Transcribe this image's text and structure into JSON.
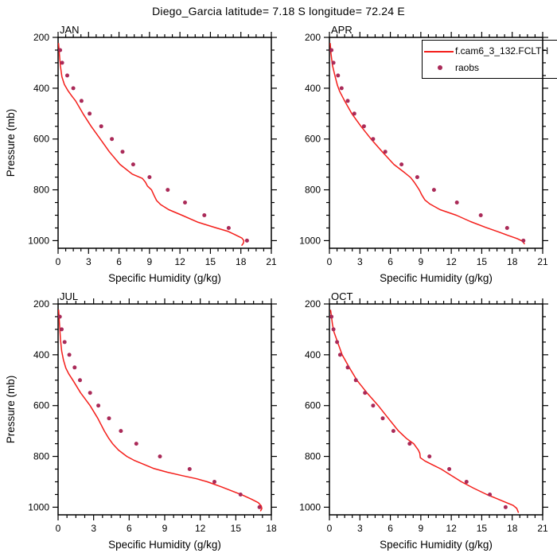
{
  "title": "Diego_Garcia  latitude= 7.18 S longitude= 72.24 E",
  "colors": {
    "model_line": "#f41e1a",
    "raobs_dot": "#aa2a58",
    "axis": "#000000"
  },
  "legend": {
    "model_label": "f.cam6_3_132.FCLTH",
    "raobs_label": "raobs"
  },
  "axes": {
    "ylabel": "Pressure (mb)",
    "xlabel": "Specific Humidity (g/kg)"
  },
  "chart_data": [
    {
      "type": "line",
      "title": "JAN",
      "xlabel": "Specific Humidity (g/kg)",
      "ylabel": "Pressure (mb)",
      "xlim": [
        0,
        21
      ],
      "ylim": [
        200,
        1030
      ],
      "y_inverted": true,
      "xticks": [
        0,
        3,
        6,
        9,
        12,
        15,
        18,
        21
      ],
      "yticks": [
        200,
        400,
        600,
        800,
        1000
      ],
      "x_minor_step": 0.75,
      "y_minor_step": 50,
      "series": [
        {
          "name": "f.cam6_3_132.FCLTH",
          "kind": "line",
          "points": [
            [
              0.05,
              224
            ],
            [
              0.12,
              260
            ],
            [
              0.22,
              310
            ],
            [
              0.38,
              355
            ],
            [
              0.62,
              385
            ],
            [
              0.95,
              408
            ],
            [
              1.3,
              428
            ],
            [
              1.72,
              450
            ],
            [
              2.45,
              500
            ],
            [
              3.25,
              550
            ],
            [
              4.15,
              600
            ],
            [
              5.05,
              650
            ],
            [
              6.1,
              700
            ],
            [
              7.3,
              738
            ],
            [
              8.3,
              755
            ],
            [
              8.6,
              770
            ],
            [
              8.8,
              785
            ],
            [
              9.2,
              800
            ],
            [
              9.45,
              822
            ],
            [
              9.7,
              842
            ],
            [
              10.1,
              858
            ],
            [
              10.9,
              878
            ],
            [
              12.2,
              900
            ],
            [
              13.8,
              928
            ],
            [
              15.6,
              950
            ],
            [
              16.7,
              963
            ],
            [
              17.4,
              976
            ],
            [
              18.1,
              990
            ],
            [
              18.3,
              1000
            ],
            [
              18.25,
              1010
            ],
            [
              18.1,
              1018
            ]
          ]
        },
        {
          "name": "raobs",
          "kind": "scatter",
          "pressure": [
            250,
            300,
            350,
            400,
            450,
            500,
            550,
            600,
            650,
            700,
            750,
            800,
            850,
            900,
            950,
            1000
          ],
          "values": [
            0.2,
            0.4,
            0.9,
            1.5,
            2.3,
            3.1,
            4.25,
            5.3,
            6.35,
            7.4,
            9.0,
            10.8,
            12.5,
            14.4,
            16.8,
            18.6
          ]
        }
      ]
    },
    {
      "type": "line",
      "title": "APR",
      "xlabel": "Specific Humidity (g/kg)",
      "ylabel": "Pressure (mb)",
      "xlim": [
        0,
        21
      ],
      "ylim": [
        200,
        1030
      ],
      "y_inverted": true,
      "xticks": [
        0,
        3,
        6,
        9,
        12,
        15,
        18,
        21
      ],
      "yticks": [
        200,
        400,
        600,
        800,
        1000
      ],
      "x_minor_step": 0.75,
      "y_minor_step": 50,
      "series": [
        {
          "name": "f.cam6_3_132.FCLTH",
          "kind": "line",
          "points": [
            [
              0.08,
              224
            ],
            [
              0.15,
              262
            ],
            [
              0.3,
              310
            ],
            [
              0.55,
              352
            ],
            [
              0.78,
              388
            ],
            [
              1.0,
              412
            ],
            [
              1.5,
              450
            ],
            [
              2.2,
              500
            ],
            [
              3.1,
              550
            ],
            [
              4.1,
              600
            ],
            [
              5.2,
              650
            ],
            [
              6.35,
              700
            ],
            [
              7.4,
              732
            ],
            [
              8.0,
              752
            ],
            [
              8.35,
              770
            ],
            [
              8.6,
              785
            ],
            [
              8.85,
              800
            ],
            [
              9.1,
              820
            ],
            [
              9.4,
              840
            ],
            [
              9.9,
              856
            ],
            [
              10.9,
              878
            ],
            [
              12.5,
              900
            ],
            [
              13.9,
              925
            ],
            [
              15.4,
              948
            ],
            [
              16.6,
              965
            ],
            [
              17.5,
              978
            ],
            [
              18.5,
              992
            ],
            [
              19.0,
              1002
            ],
            [
              19.2,
              1012
            ]
          ]
        },
        {
          "name": "raobs",
          "kind": "scatter",
          "pressure": [
            250,
            300,
            350,
            400,
            450,
            500,
            550,
            600,
            650,
            700,
            750,
            800,
            850,
            900,
            950,
            1000
          ],
          "values": [
            0.2,
            0.4,
            0.85,
            1.2,
            1.8,
            2.45,
            3.4,
            4.3,
            5.5,
            7.1,
            8.65,
            10.3,
            12.55,
            14.9,
            17.5,
            19.1
          ]
        }
      ]
    },
    {
      "type": "line",
      "title": "JUL",
      "xlabel": "Specific Humidity (g/kg)",
      "ylabel": "Pressure (mb)",
      "xlim": [
        0,
        18
      ],
      "ylim": [
        200,
        1030
      ],
      "y_inverted": true,
      "xticks": [
        0,
        3,
        6,
        9,
        12,
        15,
        18
      ],
      "yticks": [
        200,
        400,
        600,
        800,
        1000
      ],
      "x_minor_step": 0.75,
      "y_minor_step": 50,
      "series": [
        {
          "name": "f.cam6_3_132.FCLTH",
          "kind": "line",
          "points": [
            [
              0.05,
              224
            ],
            [
              0.12,
              280
            ],
            [
              0.2,
              340
            ],
            [
              0.3,
              385
            ],
            [
              0.45,
              420
            ],
            [
              0.65,
              452
            ],
            [
              0.9,
              475
            ],
            [
              1.25,
              500
            ],
            [
              1.9,
              550
            ],
            [
              2.7,
              600
            ],
            [
              3.35,
              650
            ],
            [
              3.9,
              700
            ],
            [
              4.25,
              727
            ],
            [
              4.6,
              750
            ],
            [
              5.1,
              775
            ],
            [
              5.8,
              800
            ],
            [
              6.4,
              815
            ],
            [
              7.15,
              830
            ],
            [
              8.1,
              848
            ],
            [
              9.2,
              862
            ],
            [
              10.5,
              876
            ],
            [
              11.7,
              888
            ],
            [
              12.6,
              900
            ],
            [
              13.8,
              920
            ],
            [
              14.9,
              940
            ],
            [
              15.6,
              953
            ],
            [
              16.3,
              968
            ],
            [
              16.9,
              982
            ],
            [
              17.15,
              995
            ],
            [
              17.2,
              1005
            ],
            [
              17.1,
              1014
            ]
          ]
        },
        {
          "name": "raobs",
          "kind": "scatter",
          "pressure": [
            250,
            300,
            350,
            400,
            450,
            500,
            550,
            600,
            650,
            700,
            750,
            800,
            850,
            900,
            950,
            1000
          ],
          "values": [
            0.15,
            0.3,
            0.55,
            0.95,
            1.4,
            1.85,
            2.7,
            3.4,
            4.3,
            5.3,
            6.6,
            8.6,
            11.1,
            13.2,
            15.4,
            17.0
          ]
        }
      ]
    },
    {
      "type": "line",
      "title": "OCT",
      "xlabel": "Specific Humidity (g/kg)",
      "ylabel": "Pressure (mb)",
      "xlim": [
        0,
        21
      ],
      "ylim": [
        200,
        1030
      ],
      "y_inverted": true,
      "xticks": [
        0,
        3,
        6,
        9,
        12,
        15,
        18,
        21
      ],
      "yticks": [
        200,
        400,
        600,
        800,
        1000
      ],
      "x_minor_step": 0.75,
      "y_minor_step": 50,
      "series": [
        {
          "name": "f.cam6_3_132.FCLTH",
          "kind": "line",
          "points": [
            [
              0.12,
              225
            ],
            [
              0.3,
              280
            ],
            [
              0.45,
              310
            ],
            [
              0.8,
              350
            ],
            [
              1.25,
              400
            ],
            [
              1.95,
              450
            ],
            [
              2.7,
              500
            ],
            [
              3.7,
              550
            ],
            [
              4.8,
              600
            ],
            [
              5.8,
              650
            ],
            [
              6.8,
              700
            ],
            [
              7.6,
              730
            ],
            [
              8.3,
              750
            ],
            [
              8.75,
              775
            ],
            [
              8.9,
              788
            ],
            [
              8.95,
              805
            ],
            [
              9.4,
              818
            ],
            [
              10.1,
              832
            ],
            [
              11.0,
              850
            ],
            [
              12.0,
              875
            ],
            [
              13.0,
              900
            ],
            [
              14.2,
              925
            ],
            [
              15.5,
              950
            ],
            [
              16.4,
              965
            ],
            [
              17.2,
              978
            ],
            [
              18.1,
              993
            ],
            [
              18.45,
              1005
            ],
            [
              18.6,
              1020
            ]
          ]
        },
        {
          "name": "raobs",
          "kind": "scatter",
          "pressure": [
            250,
            300,
            350,
            400,
            450,
            500,
            550,
            600,
            650,
            700,
            750,
            800,
            850,
            900,
            950,
            1000
          ],
          "values": [
            0.2,
            0.4,
            0.75,
            1.05,
            1.8,
            2.6,
            3.5,
            4.3,
            5.25,
            6.3,
            7.9,
            9.85,
            11.8,
            13.5,
            15.8,
            17.35
          ]
        }
      ]
    }
  ]
}
